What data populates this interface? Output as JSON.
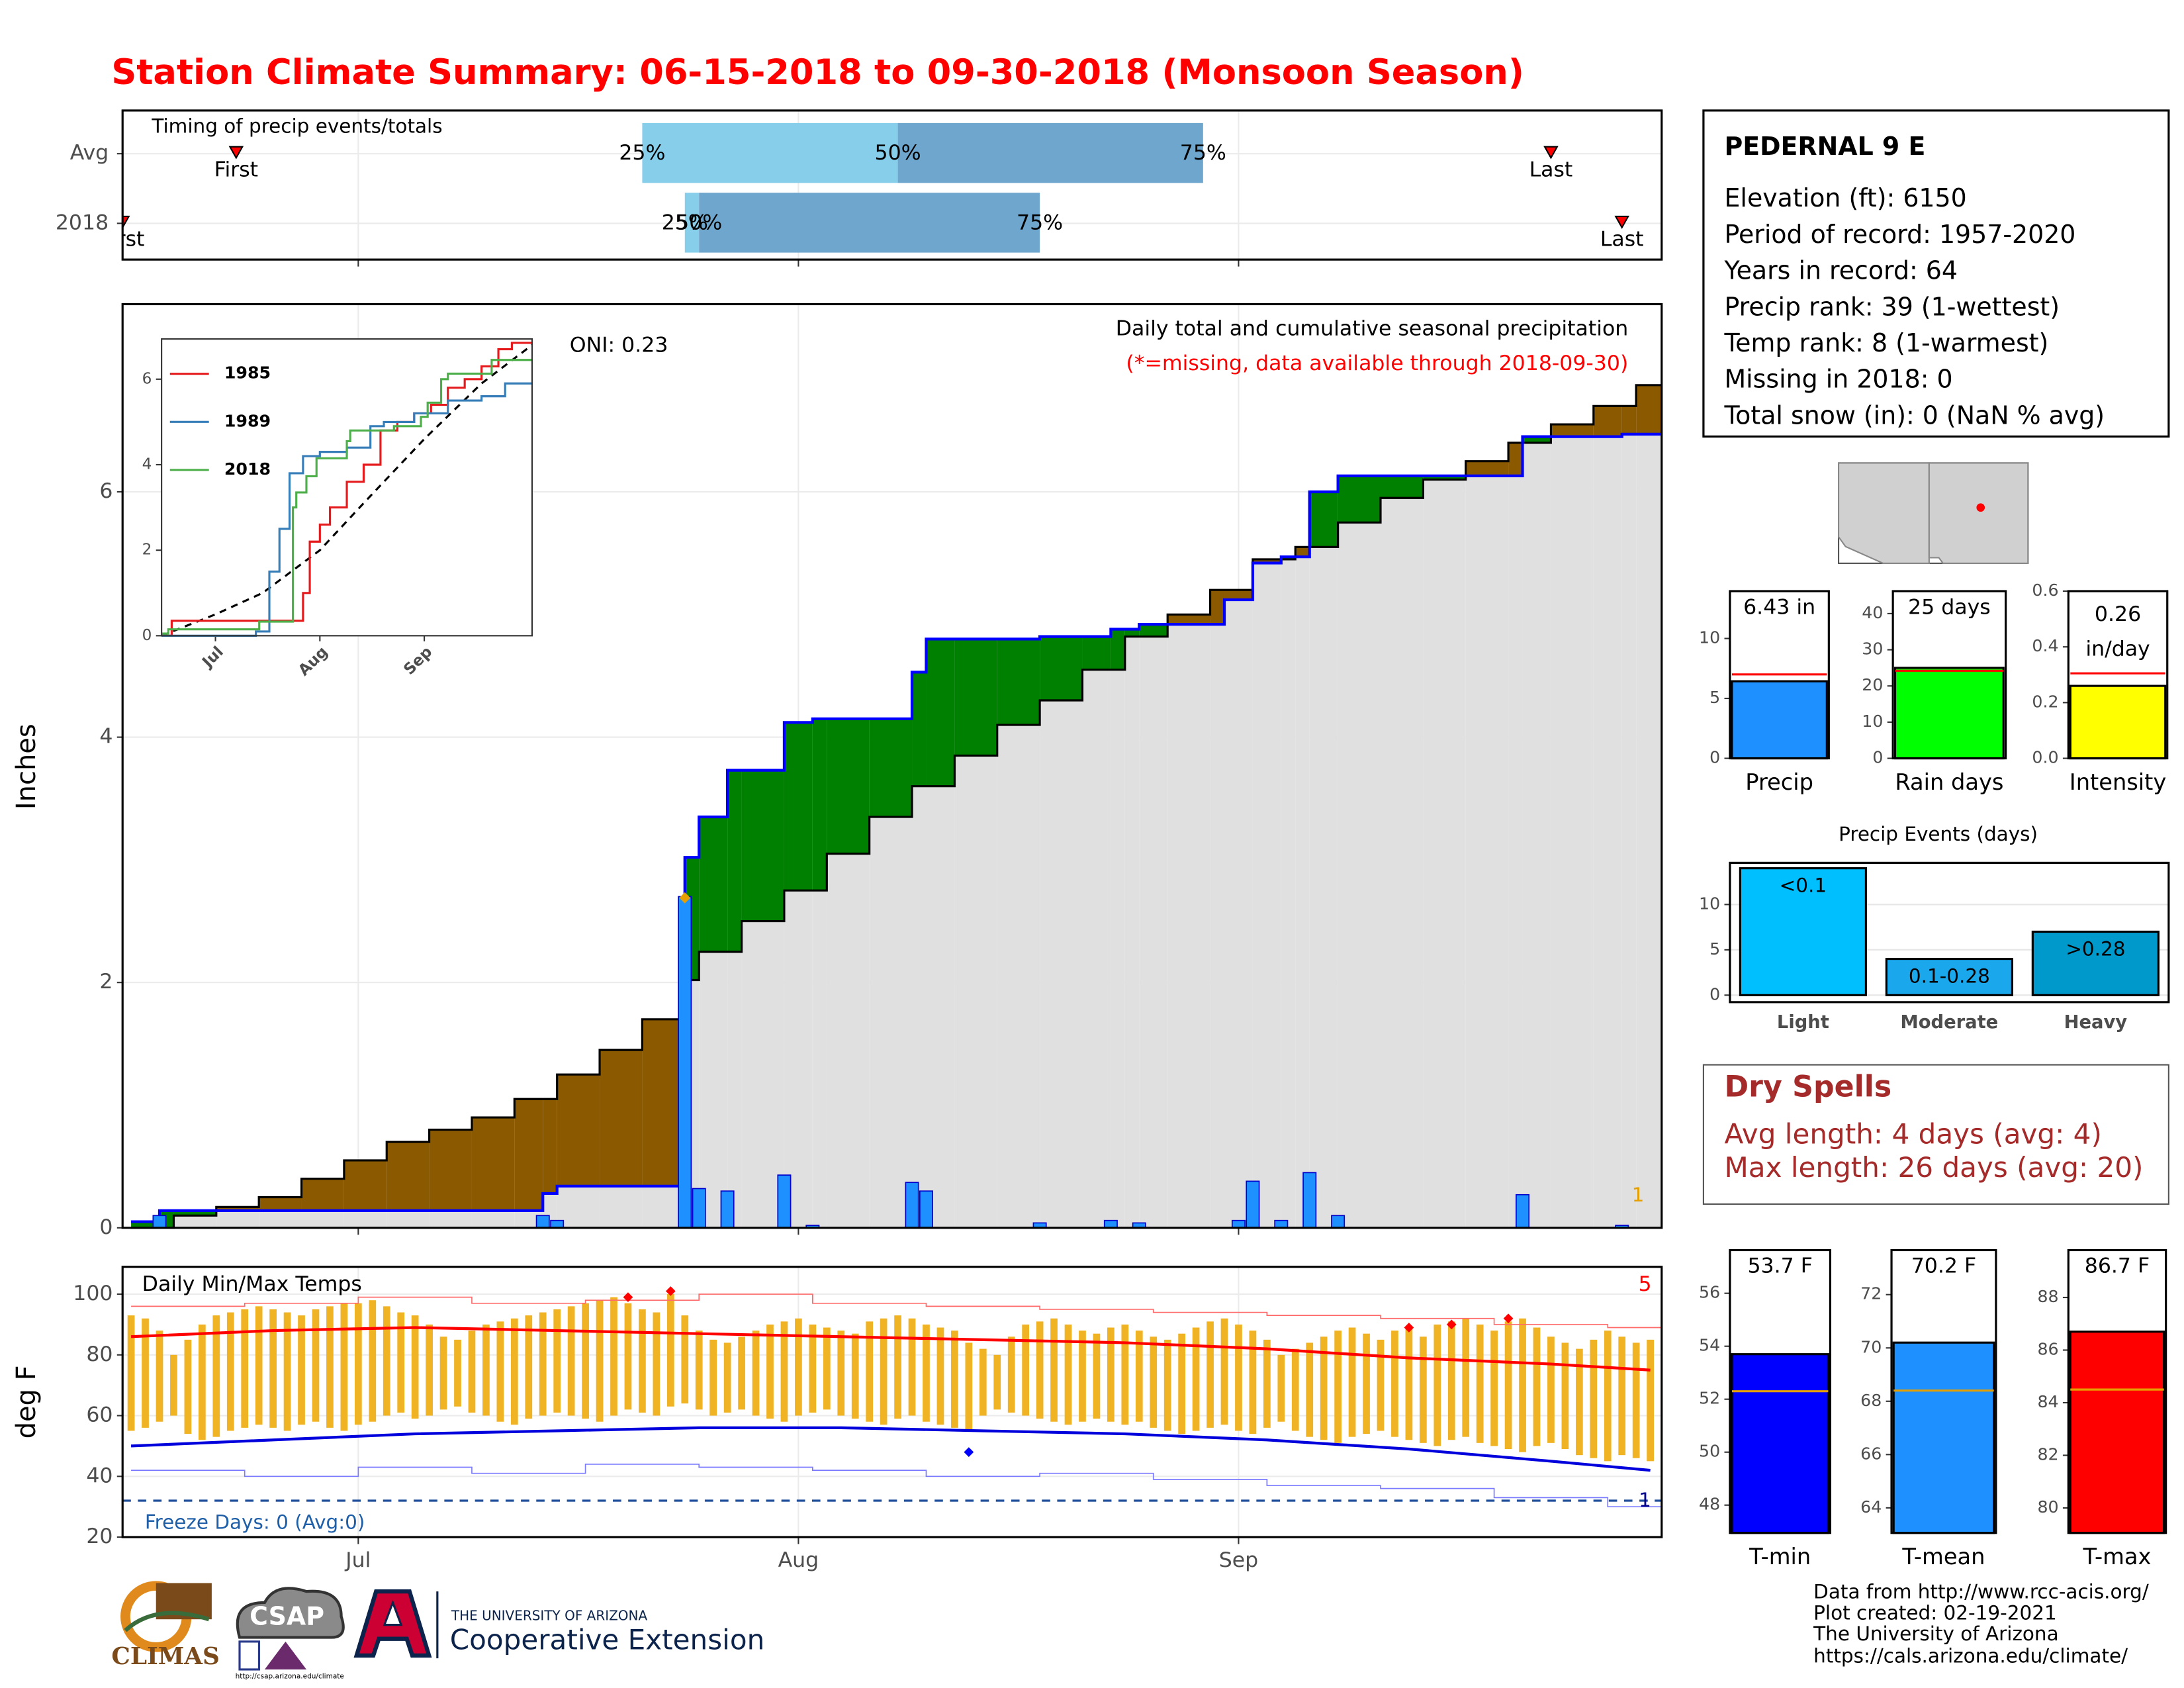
{
  "title": "Station Climate Summary: 06-15-2018 to 09-30-2018 (Monsoon Season)",
  "station": {
    "name": "PEDERNAL 9 E",
    "lines": [
      "Elevation (ft): 6150",
      "Period of record: 1957-2020",
      "Years in record: 64",
      "Precip rank: 39 (1-wettest)",
      "Temp rank: 8 (1-warmest)",
      "Missing in 2018: 0",
      "Total snow (in): 0 (NaN % avg)"
    ]
  },
  "dry_spells": {
    "title": "Dry Spells",
    "lines": [
      "Avg length: 4 days (avg: 4)",
      "Max length: 26 days (avg: 20)"
    ]
  },
  "footer": [
    "Data from http://www.rcc-acis.org/",
    "Plot created: 02-19-2021",
    "The University of Arizona",
    "https://cals.arizona.edu/climate/"
  ],
  "logos": {
    "climas": "CLIMAS",
    "csap": "CSAP",
    "csap_url": "http://csap.arizona.edu/climate",
    "ua": "THE UNIVERSITY OF ARIZONA",
    "extension": "Cooperative Extension"
  },
  "chart_data": [
    {
      "type": "step",
      "title": "Daily total and cumulative seasonal precipitation",
      "subtitle": "(*=missing, data available through 2018-09-30)",
      "annotation": "ONI: 0.23",
      "ylabel": "Inches",
      "missing_count": 1,
      "xlim": [
        -0.6,
        107.8
      ],
      "xticks": [
        16,
        47,
        78
      ],
      "ylim": [
        0,
        7.53
      ],
      "yticks": [
        0,
        2,
        4,
        6
      ],
      "grid": true,
      "surplus_color": "#008000",
      "deficit_color": "#8b5a00",
      "base_color": "#e0e0e0",
      "series": [
        {
          "color": "#000000",
          "x": [
            0,
            3,
            6,
            9,
            12,
            15,
            18,
            21,
            24,
            27,
            30,
            33,
            36,
            39,
            40,
            43,
            46,
            49,
            52,
            55,
            58,
            61,
            64,
            67,
            70,
            73,
            76,
            79,
            82,
            85,
            88,
            91,
            94,
            97,
            100,
            103,
            106
          ],
          "values": [
            0,
            0.1,
            0.17,
            0.25,
            0.4,
            0.55,
            0.7,
            0.8,
            0.9,
            1.05,
            1.25,
            1.45,
            1.7,
            2.02,
            2.25,
            2.5,
            2.75,
            3.05,
            3.35,
            3.6,
            3.85,
            4.1,
            4.3,
            4.55,
            4.82,
            5.0,
            5.2,
            5.45,
            5.55,
            5.75,
            5.95,
            6.1,
            6.25,
            6.4,
            6.55,
            6.7,
            6.87
          ]
        },
        {
          "color": "#0000ff",
          "x": [
            0,
            2,
            29,
            30,
            39,
            40,
            42,
            46,
            48,
            55,
            56,
            64,
            69,
            71,
            77,
            79,
            81,
            83,
            85,
            98,
            105
          ],
          "values": [
            0.05,
            0.14,
            0.28,
            0.34,
            3.02,
            3.35,
            3.73,
            4.12,
            4.15,
            4.53,
            4.8,
            4.82,
            4.88,
            4.92,
            5.12,
            5.42,
            5.47,
            6.0,
            6.13,
            6.45,
            6.47
          ]
        }
      ],
      "daily": {
        "color": "#1e90ff",
        "x": [
          2,
          29,
          30,
          39,
          40,
          42,
          46,
          48,
          55,
          56,
          64,
          69,
          71,
          78,
          79,
          81,
          83,
          85,
          98,
          105
        ],
        "values": [
          0.1,
          0.1,
          0.06,
          2.7,
          0.32,
          0.3,
          0.43,
          0.02,
          0.37,
          0.3,
          0.04,
          0.06,
          0.04,
          0.06,
          0.38,
          0.06,
          0.45,
          0.1,
          0.27,
          0.02
        ]
      },
      "max_marker": {
        "x": 39,
        "value": 2.69,
        "color": "#e69f00"
      }
    },
    {
      "type": "line",
      "xlim": [
        0,
        110
      ],
      "xticks": [
        {
          "value": 16,
          "label": "Jul"
        },
        {
          "value": 47,
          "label": "Aug"
        },
        {
          "value": 78,
          "label": "Sep"
        }
      ],
      "ylim": [
        0,
        6.94
      ],
      "yticks": [
        0,
        2,
        4,
        6
      ],
      "series": [
        {
          "name": "1985",
          "color": "#e41a1c",
          "x": [
            0,
            3,
            40,
            42,
            44,
            47,
            50,
            55,
            60,
            65,
            70,
            75,
            80,
            85,
            90,
            95,
            100,
            104
          ],
          "values": [
            0,
            0.35,
            0.35,
            1.0,
            2.2,
            2.6,
            3.0,
            3.6,
            4.0,
            4.8,
            5.0,
            5.2,
            5.4,
            5.8,
            6.0,
            6.3,
            6.7,
            6.85
          ]
        },
        {
          "name": "1989",
          "color": "#377eb8",
          "x": [
            0,
            28,
            32,
            35,
            38,
            42,
            47,
            55,
            62,
            66,
            75,
            85,
            95,
            102
          ],
          "values": [
            0,
            0.1,
            1.5,
            2.5,
            3.8,
            4.2,
            4.3,
            4.4,
            4.9,
            5.0,
            5.2,
            5.5,
            5.6,
            5.9
          ]
        },
        {
          "name": "2018",
          "color": "#4daf4a",
          "x": [
            0,
            2,
            29,
            39,
            40,
            43,
            46,
            55,
            56,
            69,
            77,
            79,
            83,
            85,
            98
          ],
          "values": [
            0.05,
            0.15,
            0.33,
            3.0,
            3.35,
            3.73,
            4.15,
            4.55,
            4.8,
            4.9,
            5.12,
            5.45,
            6.0,
            6.13,
            6.45
          ]
        }
      ],
      "avg": {
        "color": "#000000",
        "x": [
          0,
          16,
          30,
          47,
          60,
          78,
          95,
          110
        ],
        "values": [
          0,
          0.5,
          1.0,
          2.0,
          3.1,
          4.6,
          5.9,
          6.8
        ]
      }
    },
    {
      "type": "range",
      "title": "Daily Min/Max Temps",
      "ylabel": "deg F",
      "annotation": "Freeze Days: 0 (Avg:0)",
      "xlim": [
        -0.6,
        107.8
      ],
      "xticks": [
        {
          "value": 16,
          "label": "Jul"
        },
        {
          "value": 47,
          "label": "Aug"
        },
        {
          "value": 78,
          "label": "Sep"
        }
      ],
      "ylim": [
        20,
        109
      ],
      "yticks": [
        20,
        40,
        60,
        80,
        100
      ],
      "freeze": 32,
      "bar_color": "#f0b323",
      "x": [
        0,
        1,
        2,
        3,
        4,
        5,
        6,
        7,
        8,
        9,
        10,
        11,
        12,
        13,
        14,
        15,
        16,
        17,
        18,
        19,
        20,
        21,
        22,
        23,
        24,
        25,
        26,
        27,
        28,
        29,
        30,
        31,
        32,
        33,
        34,
        35,
        36,
        37,
        38,
        39,
        40,
        41,
        42,
        43,
        44,
        45,
        46,
        47,
        48,
        49,
        50,
        51,
        52,
        53,
        54,
        55,
        56,
        57,
        58,
        59,
        60,
        61,
        62,
        63,
        64,
        65,
        66,
        67,
        68,
        69,
        70,
        71,
        72,
        73,
        74,
        75,
        76,
        77,
        78,
        79,
        80,
        81,
        82,
        83,
        84,
        85,
        86,
        87,
        88,
        89,
        90,
        91,
        92,
        93,
        94,
        95,
        96,
        97,
        98,
        99,
        100,
        101,
        102,
        103,
        104,
        105,
        106,
        107
      ],
      "tmax": [
        93,
        92,
        88,
        80,
        85,
        90,
        93,
        94,
        95,
        96,
        95,
        94,
        93,
        95,
        96,
        97,
        97,
        98,
        96,
        94,
        93,
        90,
        86,
        85,
        88,
        90,
        91,
        92,
        93,
        94,
        95,
        96,
        97,
        98,
        99,
        97,
        95,
        94,
        100,
        93,
        88,
        85,
        84,
        86,
        88,
        90,
        91,
        92,
        90,
        89,
        88,
        87,
        91,
        92,
        93,
        92,
        90,
        89,
        88,
        84,
        82,
        80,
        86,
        90,
        91,
        92,
        90,
        88,
        87,
        89,
        90,
        88,
        86,
        85,
        87,
        89,
        91,
        92,
        90,
        88,
        85,
        80,
        82,
        84,
        86,
        88,
        89,
        87,
        85,
        88,
        89,
        86,
        90,
        91,
        92,
        90,
        88,
        91,
        92,
        89,
        86,
        84,
        82,
        85,
        88,
        86,
        84,
        85
      ],
      "tmin": [
        55,
        56,
        58,
        60,
        54,
        52,
        53,
        55,
        56,
        57,
        56,
        55,
        57,
        58,
        56,
        55,
        57,
        58,
        60,
        61,
        59,
        60,
        62,
        63,
        61,
        60,
        58,
        57,
        59,
        60,
        61,
        60,
        59,
        58,
        60,
        62,
        61,
        60,
        63,
        64,
        62,
        60,
        61,
        62,
        60,
        59,
        58,
        60,
        61,
        62,
        60,
        59,
        58,
        57,
        59,
        60,
        58,
        57,
        56,
        55,
        60,
        62,
        61,
        60,
        59,
        58,
        57,
        58,
        59,
        58,
        57,
        58,
        56,
        55,
        54,
        55,
        56,
        57,
        55,
        54,
        56,
        58,
        55,
        53,
        52,
        51,
        53,
        54,
        55,
        53,
        52,
        51,
        50,
        52,
        53,
        51,
        50,
        49,
        48,
        50,
        51,
        49,
        47,
        46,
        45,
        47,
        46,
        45
      ],
      "avg_max": {
        "color": "#ff0000",
        "x": [
          0,
          10,
          20,
          30,
          40,
          50,
          60,
          70,
          80,
          90,
          100,
          107
        ],
        "values": [
          86,
          88,
          89,
          88,
          87,
          86,
          85,
          84,
          82,
          79,
          77,
          75
        ]
      },
      "avg_min": {
        "color": "#0000dd",
        "x": [
          0,
          10,
          20,
          30,
          40,
          50,
          60,
          70,
          80,
          90,
          100,
          107
        ],
        "values": [
          50,
          52,
          54,
          55,
          56,
          56,
          55,
          54,
          52,
          49,
          45,
          42
        ]
      },
      "record_max": {
        "color": "#ff6b6b",
        "x": [
          0,
          8,
          16,
          24,
          32,
          40,
          48,
          56,
          64,
          72,
          80,
          88,
          96,
          104
        ],
        "values": [
          96,
          97,
          99,
          97,
          98,
          100,
          97,
          96,
          95,
          94,
          93,
          92,
          90,
          89
        ]
      },
      "record_min": {
        "color": "#7b7bff",
        "x": [
          0,
          8,
          16,
          24,
          32,
          40,
          48,
          56,
          64,
          72,
          80,
          88,
          96,
          104
        ],
        "values": [
          42,
          40,
          43,
          41,
          44,
          43,
          42,
          40,
          41,
          39,
          37,
          36,
          33,
          30
        ]
      },
      "record_highs": {
        "color": "#ff0000",
        "x": [
          35,
          38,
          90,
          93,
          97
        ],
        "values": [
          99,
          101,
          89,
          90,
          92
        ],
        "count": 5
      },
      "record_lows": {
        "color": "#0000ff",
        "x": [
          59
        ],
        "values": [
          48
        ],
        "count": 1
      }
    },
    {
      "type": "bar",
      "categories": [
        "Precip"
      ],
      "values": [
        6.43
      ],
      "value_labels": [
        "6.43 in"
      ],
      "avg": 7.0,
      "avg_color": "#ff0000",
      "color": "#1e90ff",
      "ylim": [
        0,
        13.95
      ],
      "yticks": [
        0,
        5,
        10
      ]
    },
    {
      "type": "bar",
      "categories": [
        "Rain days"
      ],
      "values": [
        25
      ],
      "value_labels": [
        "25 days"
      ],
      "avg": 24.2,
      "avg_color": "#ff0000",
      "color": "#00ff00",
      "ylim": [
        0,
        46.2
      ],
      "yticks": [
        0,
        10,
        20,
        30,
        40
      ]
    },
    {
      "type": "bar",
      "categories": [
        "Intensity"
      ],
      "values": [
        0.26
      ],
      "unit": "in/day",
      "avg": 0.305,
      "avg_color": "#ff0000",
      "color": "#ffff00",
      "ylim": [
        0,
        0.6
      ],
      "yticks": [
        {
          "value": 0,
          "label": "0.0"
        },
        {
          "value": 0.2,
          "label": "0.2"
        },
        {
          "value": 0.4,
          "label": "0.4"
        },
        {
          "value": 0.6,
          "label": "0.6"
        }
      ]
    },
    {
      "type": "bar",
      "title": "Precip Events (days)",
      "categories": [
        "Light",
        "Moderate",
        "Heavy"
      ],
      "values": [
        14,
        4,
        7
      ],
      "bin_labels": [
        "<0.1",
        "0.1-0.28",
        ">0.28"
      ],
      "colors": [
        "#00bfff",
        "#1aa7ec",
        "#0099cc"
      ],
      "ylim": [
        -0.77,
        14.6
      ],
      "yticks": [
        0,
        5,
        10
      ],
      "grid": true
    },
    {
      "type": "bar",
      "categories": [
        "T-min"
      ],
      "values": [
        53.7
      ],
      "value_labels": [
        "53.7 F"
      ],
      "avg": 52.3,
      "avg_color": "#e69f00",
      "color": "#0000ff",
      "ylim": [
        46.95,
        57.63
      ],
      "yticks": [
        48,
        50,
        52,
        54,
        56
      ]
    },
    {
      "type": "bar",
      "categories": [
        "T-mean"
      ],
      "values": [
        70.2
      ],
      "value_labels": [
        "70.2 F"
      ],
      "avg": 68.4,
      "avg_color": "#e69f00",
      "color": "#1e90ff",
      "ylim": [
        63.06,
        73.67
      ],
      "yticks": [
        64,
        66,
        68,
        70,
        72
      ]
    },
    {
      "type": "bar",
      "categories": [
        "T-max"
      ],
      "values": [
        86.7
      ],
      "value_labels": [
        "86.7 F"
      ],
      "avg": 84.5,
      "avg_color": "#e69f00",
      "color": "#ff0000",
      "ylim": [
        79.05,
        89.8
      ],
      "yticks": [
        80,
        82,
        84,
        86,
        88
      ]
    },
    {
      "type": "timing",
      "title": "Timing of precip events/totals",
      "xlim": [
        -0.6,
        107.8
      ],
      "xticks": [
        16,
        47,
        78
      ],
      "first_label": "First",
      "last_label": "Last",
      "q_labels": [
        "25%",
        "50%",
        "75%"
      ],
      "colors": [
        "#87ceeb",
        "#6fa6cd"
      ],
      "rows": [
        {
          "label": "Avg",
          "first": 7.4,
          "q25": 36,
          "q50": 54,
          "q75": 75.5,
          "last": 100
        },
        {
          "label": "2018",
          "first": -0.6,
          "q25": 39,
          "q50": 40,
          "q75": 64,
          "last": 105
        }
      ]
    }
  ]
}
